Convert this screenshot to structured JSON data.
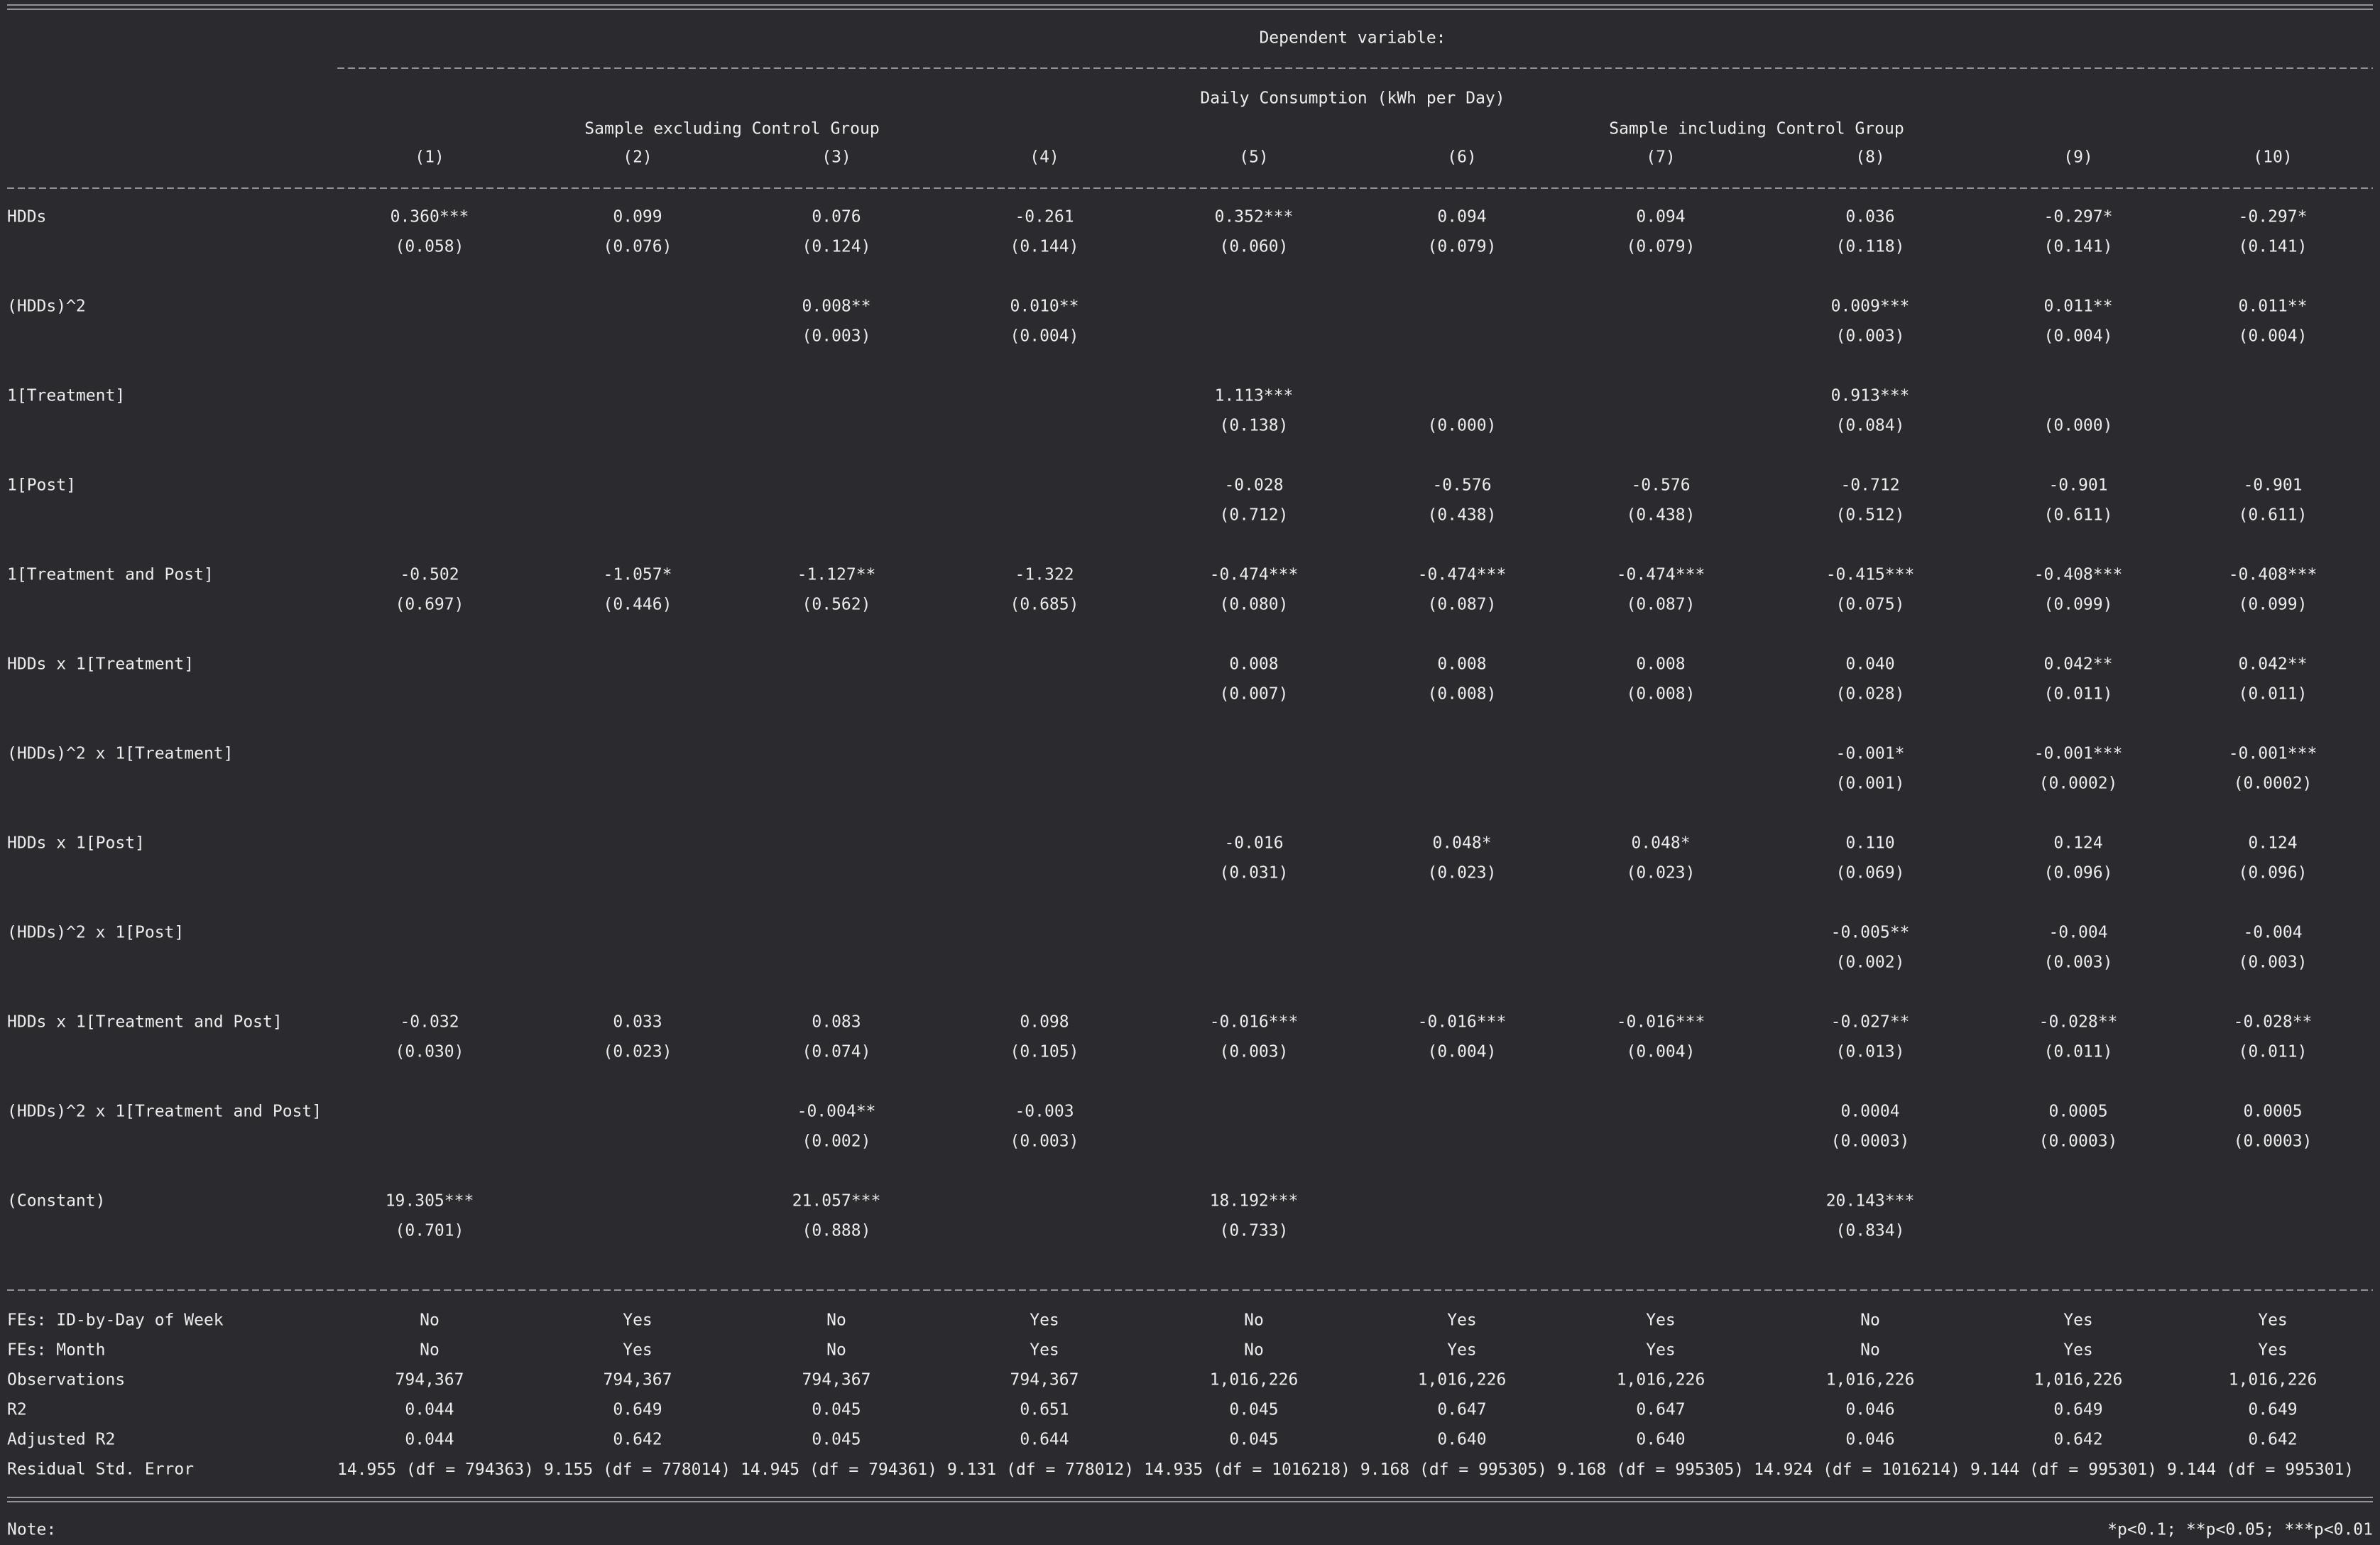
{
  "header": {
    "dependent_label": "Dependent variable:",
    "dependent_variable": "Daily Consumption (kWh per Day)",
    "groups": [
      "Sample excluding Control Group",
      "Sample including Control Group"
    ],
    "columns": [
      "(1)",
      "(2)",
      "(3)",
      "(4)",
      "(5)",
      "(6)",
      "(7)",
      "(8)",
      "(9)",
      "(10)"
    ]
  },
  "rows": [
    {
      "label": "HDDs",
      "coef": [
        "0.360***",
        "0.099",
        "0.076",
        "-0.261",
        "0.352***",
        "0.094",
        "0.094",
        "0.036",
        "-0.297*",
        "-0.297*"
      ],
      "se": [
        "(0.058)",
        "(0.076)",
        "(0.124)",
        "(0.144)",
        "(0.060)",
        "(0.079)",
        "(0.079)",
        "(0.118)",
        "(0.141)",
        "(0.141)"
      ]
    },
    {
      "label": "(HDDs)^2",
      "coef": [
        null,
        null,
        "0.008**",
        "0.010**",
        null,
        null,
        null,
        "0.009***",
        "0.011**",
        "0.011**"
      ],
      "se": [
        null,
        null,
        "(0.003)",
        "(0.004)",
        null,
        null,
        null,
        "(0.003)",
        "(0.004)",
        "(0.004)"
      ]
    },
    {
      "label": "1[Treatment]",
      "coef": [
        null,
        null,
        null,
        null,
        "1.113***",
        null,
        null,
        "0.913***",
        null,
        null
      ],
      "se": [
        null,
        null,
        null,
        null,
        "(0.138)",
        "(0.000)",
        null,
        "(0.084)",
        "(0.000)",
        null
      ]
    },
    {
      "label": "1[Post]",
      "coef": [
        null,
        null,
        null,
        null,
        "-0.028",
        "-0.576",
        "-0.576",
        "-0.712",
        "-0.901",
        "-0.901"
      ],
      "se": [
        null,
        null,
        null,
        null,
        "(0.712)",
        "(0.438)",
        "(0.438)",
        "(0.512)",
        "(0.611)",
        "(0.611)"
      ]
    },
    {
      "label": "1[Treatment and Post]",
      "coef": [
        "-0.502",
        "-1.057*",
        "-1.127**",
        "-1.322",
        "-0.474***",
        "-0.474***",
        "-0.474***",
        "-0.415***",
        "-0.408***",
        "-0.408***"
      ],
      "se": [
        "(0.697)",
        "(0.446)",
        "(0.562)",
        "(0.685)",
        "(0.080)",
        "(0.087)",
        "(0.087)",
        "(0.075)",
        "(0.099)",
        "(0.099)"
      ]
    },
    {
      "label": "HDDs x 1[Treatment]",
      "coef": [
        null,
        null,
        null,
        null,
        "0.008",
        "0.008",
        "0.008",
        "0.040",
        "0.042**",
        "0.042**"
      ],
      "se": [
        null,
        null,
        null,
        null,
        "(0.007)",
        "(0.008)",
        "(0.008)",
        "(0.028)",
        "(0.011)",
        "(0.011)"
      ]
    },
    {
      "label": "(HDDs)^2 x 1[Treatment]",
      "coef": [
        null,
        null,
        null,
        null,
        null,
        null,
        null,
        "-0.001*",
        "-0.001***",
        "-0.001***"
      ],
      "se": [
        null,
        null,
        null,
        null,
        null,
        null,
        null,
        "(0.001)",
        "(0.0002)",
        "(0.0002)"
      ]
    },
    {
      "label": "HDDs x 1[Post]",
      "coef": [
        null,
        null,
        null,
        null,
        "-0.016",
        "0.048*",
        "0.048*",
        "0.110",
        "0.124",
        "0.124"
      ],
      "se": [
        null,
        null,
        null,
        null,
        "(0.031)",
        "(0.023)",
        "(0.023)",
        "(0.069)",
        "(0.096)",
        "(0.096)"
      ]
    },
    {
      "label": "(HDDs)^2 x 1[Post]",
      "coef": [
        null,
        null,
        null,
        null,
        null,
        null,
        null,
        "-0.005**",
        "-0.004",
        "-0.004"
      ],
      "se": [
        null,
        null,
        null,
        null,
        null,
        null,
        null,
        "(0.002)",
        "(0.003)",
        "(0.003)"
      ]
    },
    {
      "label": "HDDs x 1[Treatment and Post]",
      "coef": [
        "-0.032",
        "0.033",
        "0.083",
        "0.098",
        "-0.016***",
        "-0.016***",
        "-0.016***",
        "-0.027**",
        "-0.028**",
        "-0.028**"
      ],
      "se": [
        "(0.030)",
        "(0.023)",
        "(0.074)",
        "(0.105)",
        "(0.003)",
        "(0.004)",
        "(0.004)",
        "(0.013)",
        "(0.011)",
        "(0.011)"
      ]
    },
    {
      "label": "(HDDs)^2 x 1[Treatment and Post]",
      "coef": [
        null,
        null,
        "-0.004**",
        "-0.003",
        null,
        null,
        null,
        "0.0004",
        "0.0005",
        "0.0005"
      ],
      "se": [
        null,
        null,
        "(0.002)",
        "(0.003)",
        null,
        null,
        null,
        "(0.0003)",
        "(0.0003)",
        "(0.0003)"
      ]
    },
    {
      "label": "(Constant)",
      "coef": [
        "19.305***",
        null,
        "21.057***",
        null,
        "18.192***",
        null,
        null,
        "20.143***",
        null,
        null
      ],
      "se": [
        "(0.701)",
        null,
        "(0.888)",
        null,
        "(0.733)",
        null,
        null,
        "(0.834)",
        null,
        null
      ]
    }
  ],
  "stats": [
    {
      "label": "FEs: ID-by-Day of Week",
      "values": [
        "No",
        "Yes",
        "No",
        "Yes",
        "No",
        "Yes",
        "Yes",
        "No",
        "Yes",
        "Yes"
      ]
    },
    {
      "label": "FEs: Month",
      "values": [
        "No",
        "Yes",
        "No",
        "Yes",
        "No",
        "Yes",
        "Yes",
        "No",
        "Yes",
        "Yes"
      ]
    },
    {
      "label": "Observations",
      "values": [
        "794,367",
        "794,367",
        "794,367",
        "794,367",
        "1,016,226",
        "1,016,226",
        "1,016,226",
        "1,016,226",
        "1,016,226",
        "1,016,226"
      ]
    },
    {
      "label": "R2",
      "values": [
        "0.044",
        "0.649",
        "0.045",
        "0.651",
        "0.045",
        "0.647",
        "0.647",
        "0.046",
        "0.649",
        "0.649"
      ]
    },
    {
      "label": "Adjusted R2",
      "values": [
        "0.044",
        "0.642",
        "0.045",
        "0.644",
        "0.045",
        "0.640",
        "0.640",
        "0.046",
        "0.642",
        "0.642"
      ]
    },
    {
      "label": "Residual Std. Error",
      "values": [
        "14.955 (df = 794363)",
        "9.155 (df = 778014)",
        "14.945 (df = 794361)",
        "9.131 (df = 778012)",
        "14.935 (df = 1016218)",
        "9.168 (df = 995305)",
        "9.168 (df = 995305)",
        "14.924 (df = 1016214)",
        "9.144 (df = 995301)",
        "9.144 (df = 995301)"
      ]
    }
  ],
  "note": {
    "label": "Note:",
    "text": "*p<0.1; **p<0.05; ***p<0.01"
  }
}
